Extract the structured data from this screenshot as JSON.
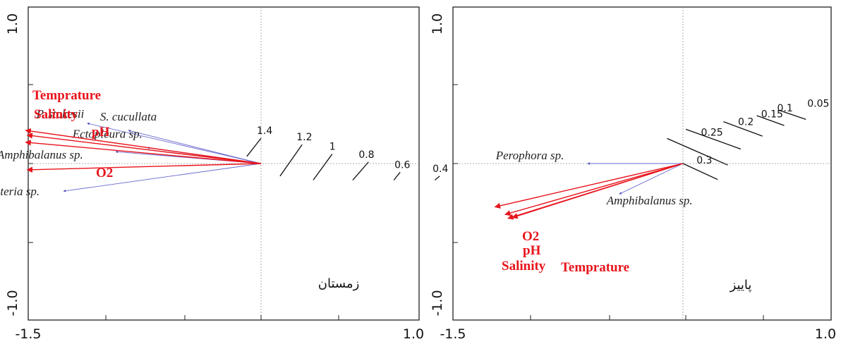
{
  "chart_data": [
    {
      "type": "scatter",
      "panel": "left",
      "season_label": "زمستان",
      "x_ticks": [
        -1.5,
        1.0
      ],
      "y_ticks": [
        1.0,
        -1.0
      ],
      "xlim": [
        -1.5,
        1.0
      ],
      "ylim": [
        -1.0,
        1.0
      ],
      "species": [
        {
          "name": "P. stokesii",
          "x": -1.1,
          "y": 0.51
        },
        {
          "name": "S. cucullata",
          "x": -0.84,
          "y": 0.42
        },
        {
          "name": "Ectopleura sp.",
          "x": -0.72,
          "y": 0.2
        },
        {
          "name": "Amphibalanus sp.",
          "x": -0.92,
          "y": 0.15
        },
        {
          "name": "Pteria sp.",
          "x": -1.25,
          "y": -0.35
        }
      ],
      "env_vectors": [
        {
          "name": "Temprature",
          "x": -1.49,
          "y": 0.42
        },
        {
          "name": "Salinity",
          "x": -1.48,
          "y": 0.36
        },
        {
          "name": "pH",
          "x": -1.49,
          "y": 0.27
        },
        {
          "name": "O2",
          "x": -1.48,
          "y": -0.08
        }
      ],
      "contours": [
        {
          "label": "1.4",
          "x1": -0.09,
          "y1": 0.09,
          "x2": 0.0,
          "y2": 0.32
        },
        {
          "label": "1.2",
          "x1": 0.12,
          "y1": -0.16,
          "x2": 0.26,
          "y2": 0.24
        },
        {
          "label": "1",
          "x1": 0.33,
          "y1": -0.21,
          "x2": 0.45,
          "y2": 0.12
        },
        {
          "label": "0.8",
          "x1": 0.58,
          "y1": -0.21,
          "x2": 0.68,
          "y2": 0.02
        },
        {
          "label": "0.6",
          "x1": 0.84,
          "y1": -0.21,
          "x2": 0.88,
          "y2": -0.11
        },
        {
          "label": "0.4",
          "x1": 1.1,
          "y1": -0.21,
          "x2": 1.13,
          "y2": -0.16
        }
      ]
    },
    {
      "type": "scatter",
      "panel": "right",
      "season_label": "پاییز",
      "x_ticks": [
        -1.5,
        1.0
      ],
      "y_ticks": [
        1.0,
        -1.0
      ],
      "xlim": [
        -1.5,
        1.0
      ],
      "ylim": [
        -1.0,
        1.0
      ],
      "species": [
        {
          "name": "Perophora sp.",
          "x": -0.66,
          "y": 0.0
        },
        {
          "name": "Amphibalanus sp.",
          "x": -0.44,
          "y": -0.4
        }
      ],
      "env_vectors": [
        {
          "name": "O2",
          "x": -1.3,
          "y": -0.57
        },
        {
          "name": "pH",
          "x": -1.23,
          "y": -0.67
        },
        {
          "name": "Salinity",
          "x": -1.21,
          "y": -0.72
        },
        {
          "name": "Temprature",
          "x": -1.18,
          "y": -0.71
        }
      ],
      "contours": [
        {
          "label": "0.05",
          "x1": 0.68,
          "y1": 0.69,
          "x2": 0.85,
          "y2": 0.58
        },
        {
          "label": "0.1",
          "x1": 0.51,
          "y1": 0.63,
          "x2": 0.7,
          "y2": 0.5
        },
        {
          "label": "0.15",
          "x1": 0.28,
          "y1": 0.55,
          "x2": 0.55,
          "y2": 0.36
        },
        {
          "label": "0.2",
          "x1": 0.02,
          "y1": 0.45,
          "x2": 0.4,
          "y2": 0.19
        },
        {
          "label": "0.25",
          "x1": -0.11,
          "y1": 0.33,
          "x2": 0.31,
          "y2": -0.02
        },
        {
          "label": "0.3",
          "x1": 0.0,
          "y1": 0.0,
          "x2": 0.24,
          "y2": -0.21
        }
      ]
    }
  ]
}
